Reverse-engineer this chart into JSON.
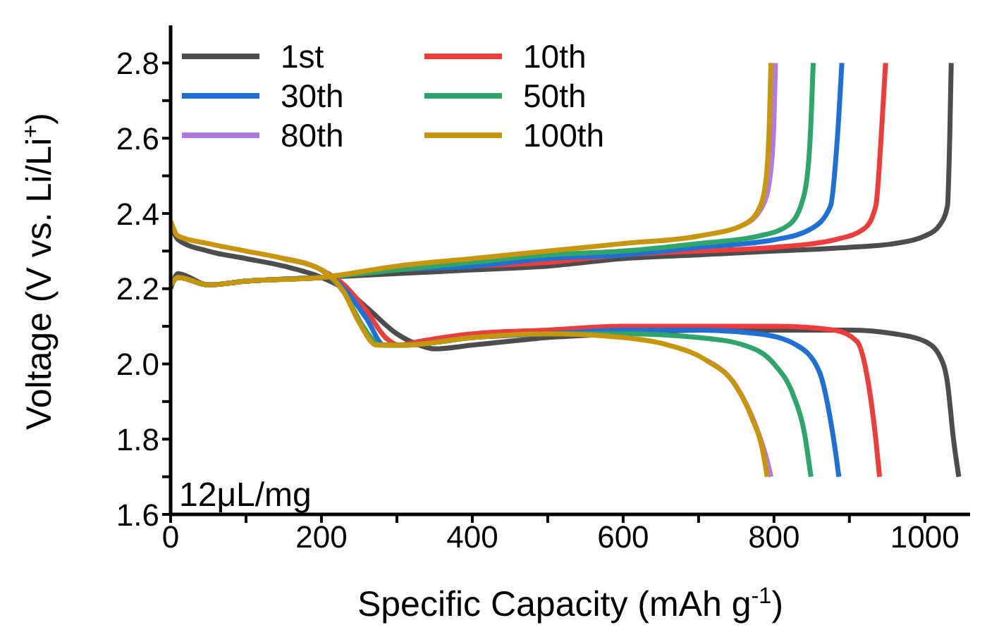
{
  "chart_data": {
    "type": "line",
    "xlabel": "Specific Capacity (mAh g$^{-1}$)",
    "ylabel": "Voltage (V vs. Li/Li$^{+}$)",
    "xlim": [
      0,
      1060
    ],
    "ylim": [
      1.6,
      2.9
    ],
    "xticks": [
      0,
      {
        "value": 100,
        "label": null
      },
      200,
      {
        "value": 300,
        "label": null
      },
      400,
      {
        "value": 500,
        "label": null
      },
      600,
      {
        "value": 700,
        "label": null
      },
      800,
      {
        "value": 900,
        "label": null
      },
      1000
    ],
    "yticks": [
      {
        "value": 1.6,
        "label": "1.6"
      },
      {
        "value": 1.7,
        "label": null
      },
      {
        "value": 1.8,
        "label": "1.8"
      },
      {
        "value": 1.9,
        "label": null
      },
      {
        "value": 2.0,
        "label": "2.0"
      },
      {
        "value": 2.1,
        "label": null
      },
      {
        "value": 2.2,
        "label": "2.2"
      },
      {
        "value": 2.3,
        "label": null
      },
      {
        "value": 2.4,
        "label": "2.4"
      },
      {
        "value": 2.5,
        "label": null
      },
      {
        "value": 2.6,
        "label": "2.6"
      },
      {
        "value": 2.7,
        "label": null
      },
      {
        "value": 2.8,
        "label": "2.8"
      }
    ],
    "grid": false,
    "legend": "top left",
    "marker": "none",
    "line_style": "solid",
    "annotations": [
      "12μL/mg"
    ],
    "series": [
      {
        "name": "1st",
        "color": "#4d4d4d",
        "x": [
          0,
          10,
          50,
          100,
          150,
          200,
          230,
          260,
          300,
          330,
          350,
          400,
          500,
          600,
          700,
          800,
          900,
          960,
          1000,
          1020,
          1030,
          1038,
          1045,
          null,
          0,
          10,
          50,
          100,
          200,
          300,
          400,
          500,
          600,
          700,
          800,
          900,
          960,
          1000,
          1020,
          1030,
          1033,
          1035
        ],
        "values": [
          2.37,
          2.33,
          2.3,
          2.28,
          2.26,
          2.23,
          2.2,
          2.15,
          2.08,
          2.05,
          2.04,
          2.05,
          2.07,
          2.08,
          2.09,
          2.09,
          2.09,
          2.08,
          2.06,
          2.02,
          1.95,
          1.8,
          1.7,
          null,
          2.2,
          2.24,
          2.21,
          2.22,
          2.23,
          2.24,
          2.25,
          2.26,
          2.28,
          2.29,
          2.3,
          2.31,
          2.32,
          2.34,
          2.37,
          2.42,
          2.6,
          2.8
        ]
      },
      {
        "name": "10th",
        "color": "#ee3b3b",
        "x": [
          150,
          200,
          230,
          260,
          285,
          303,
          330,
          400,
          500,
          600,
          700,
          800,
          880,
          910,
          925,
          935,
          940,
          null,
          0,
          10,
          50,
          100,
          200,
          300,
          400,
          500,
          600,
          700,
          800,
          880,
          920,
          935,
          942,
          948
        ],
        "values": [
          2.28,
          2.25,
          2.21,
          2.14,
          2.07,
          2.05,
          2.06,
          2.08,
          2.09,
          2.1,
          2.1,
          2.1,
          2.09,
          2.06,
          1.95,
          1.8,
          1.7,
          null,
          2.21,
          2.23,
          2.21,
          2.22,
          2.23,
          2.25,
          2.26,
          2.27,
          2.29,
          2.3,
          2.31,
          2.33,
          2.36,
          2.42,
          2.6,
          2.8
        ]
      },
      {
        "name": "30th",
        "color": "#1f6fd6",
        "x": [
          200,
          230,
          260,
          283,
          310,
          400,
          500,
          600,
          700,
          780,
          830,
          860,
          875,
          882,
          886,
          null,
          0,
          10,
          50,
          100,
          200,
          300,
          400,
          500,
          600,
          700,
          800,
          850,
          875,
          884,
          890
        ],
        "values": [
          2.25,
          2.2,
          2.12,
          2.05,
          2.05,
          2.07,
          2.08,
          2.09,
          2.09,
          2.08,
          2.05,
          1.98,
          1.85,
          1.76,
          1.7,
          null,
          2.21,
          2.23,
          2.21,
          2.22,
          2.23,
          2.25,
          2.26,
          2.28,
          2.29,
          2.31,
          2.33,
          2.36,
          2.42,
          2.6,
          2.8
        ]
      },
      {
        "name": "50th",
        "color": "#2ea56a",
        "x": [
          200,
          230,
          255,
          278,
          310,
          400,
          500,
          600,
          700,
          760,
          800,
          825,
          840,
          849,
          null,
          0,
          10,
          50,
          100,
          200,
          300,
          400,
          500,
          600,
          700,
          780,
          820,
          840,
          848,
          852
        ],
        "values": [
          2.25,
          2.19,
          2.1,
          2.05,
          2.05,
          2.07,
          2.08,
          2.08,
          2.07,
          2.05,
          2.0,
          1.92,
          1.82,
          1.7,
          null,
          2.21,
          2.23,
          2.21,
          2.22,
          2.23,
          2.25,
          2.27,
          2.29,
          2.3,
          2.32,
          2.34,
          2.37,
          2.45,
          2.6,
          2.8
        ]
      },
      {
        "name": "80th",
        "color": "#b07be0",
        "x": [
          710,
          750,
          775,
          790,
          796,
          null,
          760,
          785,
          795,
          800,
          802
        ],
        "values": [
          2.01,
          1.94,
          1.84,
          1.75,
          1.7,
          null,
          2.37,
          2.42,
          2.5,
          2.65,
          2.8
        ]
      },
      {
        "name": "100th",
        "color": "#c8960c",
        "x": [
          0,
          10,
          50,
          100,
          150,
          200,
          230,
          250,
          273,
          310,
          400,
          500,
          600,
          660,
          710,
          750,
          770,
          785,
          791,
          null,
          0,
          10,
          50,
          100,
          200,
          300,
          400,
          500,
          600,
          700,
          760,
          782,
          790,
          794,
          796
        ],
        "values": [
          2.38,
          2.34,
          2.32,
          2.3,
          2.28,
          2.25,
          2.19,
          2.11,
          2.05,
          2.05,
          2.07,
          2.08,
          2.07,
          2.05,
          2.01,
          1.94,
          1.86,
          1.77,
          1.7,
          null,
          2.21,
          2.23,
          2.21,
          2.22,
          2.23,
          2.26,
          2.28,
          2.3,
          2.32,
          2.34,
          2.37,
          2.42,
          2.5,
          2.65,
          2.8
        ]
      }
    ]
  }
}
